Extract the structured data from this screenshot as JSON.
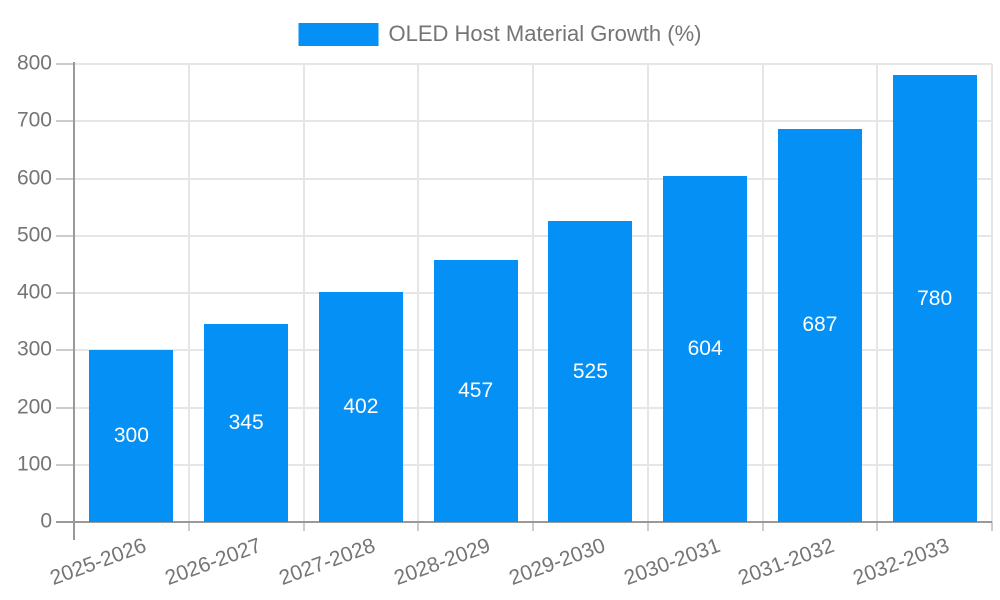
{
  "legend": {
    "label": "OLED Host Material Growth (%)",
    "swatch_color": "#0590f5"
  },
  "chart_data": {
    "type": "bar",
    "title": "OLED Host Material Growth (%)",
    "categories": [
      "2025-2026",
      "2026-2027",
      "2027-2028",
      "2028-2029",
      "2029-2030",
      "2030-2031",
      "2031-2032",
      "2032-2033"
    ],
    "values": [
      300,
      345,
      402,
      457,
      525,
      604,
      687,
      780
    ],
    "xlabel": "",
    "ylabel": "",
    "ylim": [
      0,
      800
    ],
    "yticks": [
      0,
      100,
      200,
      300,
      400,
      500,
      600,
      700,
      800
    ],
    "grid": true,
    "legend_position": "top",
    "bar_color": "#0590f5",
    "value_label_color": "#ffffff",
    "axis_label_color": "#757575",
    "axis_line_color": "#999999",
    "grid_line_color": "#e6e6e6",
    "tick_color": "#cccccc"
  }
}
